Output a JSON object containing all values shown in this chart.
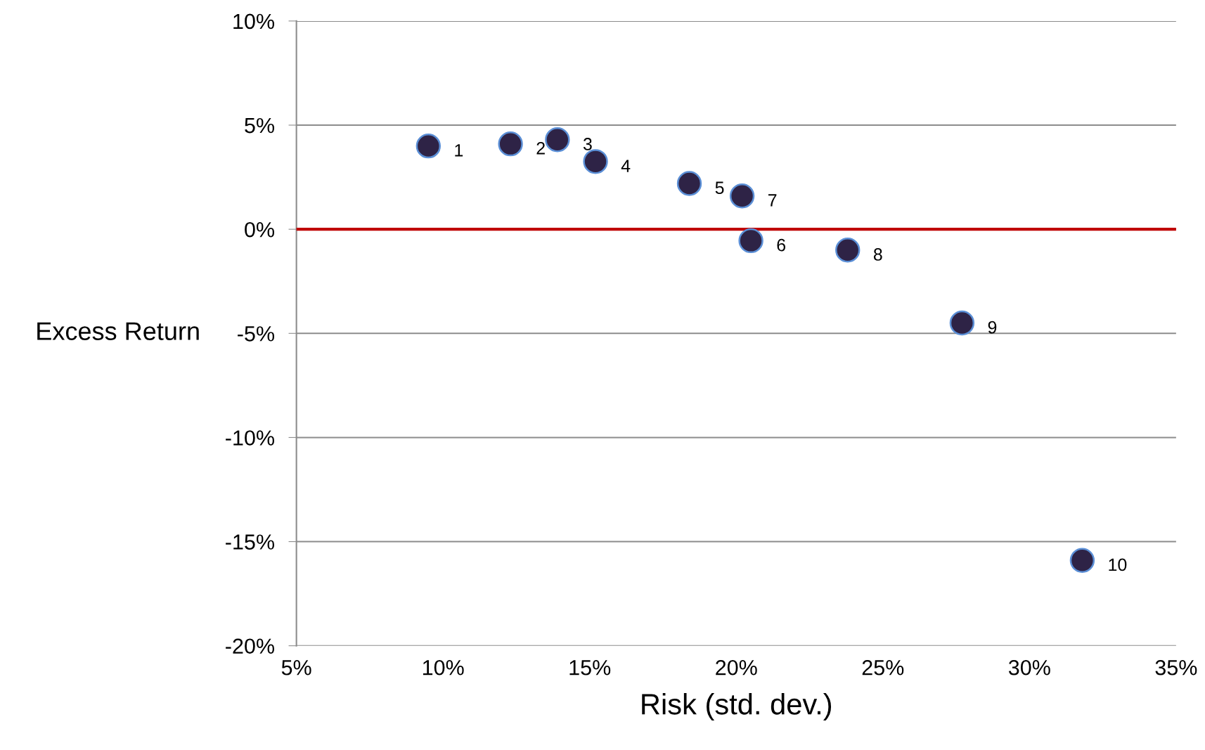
{
  "chart_data": {
    "type": "scatter",
    "xlabel": "Risk (std. dev.)",
    "ylabel": "Excess Return",
    "series": [
      {
        "color": "#2e2346",
        "x": [
          9.5,
          12.3,
          13.9,
          15.2,
          18.4,
          20.2,
          20.5,
          23.8,
          27.7,
          31.8
        ],
        "values": [
          4.0,
          4.1,
          4.3,
          3.25,
          2.2,
          1.6,
          -0.55,
          -1.0,
          -4.5,
          -15.9
        ]
      }
    ],
    "annotations": [
      {
        "text": "1",
        "x": 9.5,
        "y": 4.0
      },
      {
        "text": "2",
        "x": 12.3,
        "y": 4.1
      },
      {
        "text": "3",
        "x": 13.9,
        "y": 4.3
      },
      {
        "text": "4",
        "x": 15.2,
        "y": 3.25
      },
      {
        "text": "5",
        "x": 18.4,
        "y": 2.2
      },
      {
        "text": "7",
        "x": 20.2,
        "y": 1.6
      },
      {
        "text": "6",
        "x": 20.5,
        "y": -0.55
      },
      {
        "text": "8",
        "x": 23.8,
        "y": -1.0
      },
      {
        "text": "9",
        "x": 27.7,
        "y": -4.5
      },
      {
        "text": "10",
        "x": 31.8,
        "y": -15.9
      }
    ],
    "xlim": [
      5,
      35
    ],
    "ylim": [
      -20,
      10
    ],
    "xticks": [
      {
        "value": 5,
        "label": "5%"
      },
      {
        "value": 10,
        "label": "10%"
      },
      {
        "value": 15,
        "label": "15%"
      },
      {
        "value": 20,
        "label": "20%"
      },
      {
        "value": 25,
        "label": "25%"
      },
      {
        "value": 30,
        "label": "30%"
      },
      {
        "value": 35,
        "label": "35%"
      }
    ],
    "yticks": [
      {
        "value": -20,
        "label": "-20%"
      },
      {
        "value": -15,
        "label": "-15%"
      },
      {
        "value": -10,
        "label": "-10%"
      },
      {
        "value": -5,
        "label": "-5%"
      },
      {
        "value": 0,
        "label": "0%"
      },
      {
        "value": 5,
        "label": "5%"
      },
      {
        "value": 10,
        "label": "10%"
      }
    ],
    "ref_lines": [
      {
        "axis": "y",
        "value": 0,
        "color": "#c00000"
      }
    ],
    "grid": "y",
    "marker": "circle"
  }
}
